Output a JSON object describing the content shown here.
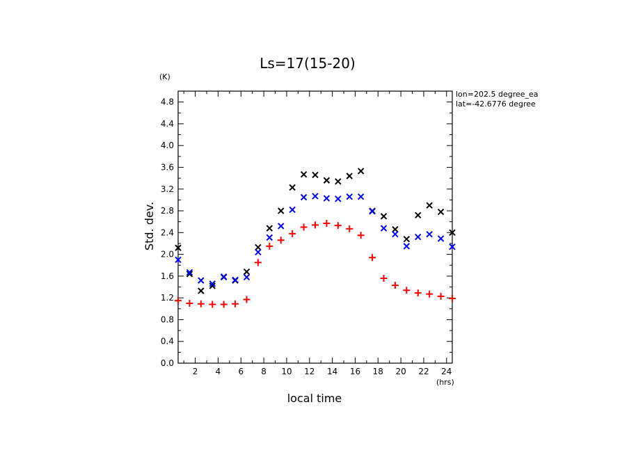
{
  "chart_data": {
    "type": "scatter",
    "title": "Ls=17(15-20)",
    "xlabel": "local time",
    "ylabel": "Std. dev.",
    "x_unit": "(hrs)",
    "y_unit": "(K)",
    "xlim": [
      0.5,
      24.5
    ],
    "ylim": [
      0.0,
      5.0
    ],
    "xticks": [
      2,
      4,
      6,
      8,
      10,
      12,
      14,
      16,
      18,
      20,
      22,
      24
    ],
    "yticks": [
      0.0,
      0.4,
      0.8,
      1.2,
      1.6,
      2.0,
      2.4,
      2.8,
      3.2,
      3.6,
      4.0,
      4.4,
      4.8
    ],
    "annotations": [
      "lon=202.5 degree_ea",
      "lat=-42.6776 degree"
    ],
    "x": [
      0.5,
      1.5,
      2.5,
      3.5,
      4.5,
      5.5,
      6.5,
      7.5,
      8.5,
      9.5,
      10.5,
      11.5,
      12.5,
      13.5,
      14.5,
      15.5,
      16.5,
      17.5,
      18.5,
      19.5,
      20.5,
      21.5,
      22.5,
      23.5,
      24.5
    ],
    "series": [
      {
        "marker": "x",
        "color": "#000000",
        "values": [
          2.12,
          1.64,
          1.33,
          1.42,
          1.58,
          1.52,
          1.68,
          2.13,
          2.48,
          2.8,
          3.23,
          3.47,
          3.46,
          3.36,
          3.34,
          3.44,
          3.53,
          2.8,
          2.7,
          2.46,
          2.28,
          2.72,
          2.9,
          2.78,
          2.4
        ]
      },
      {
        "marker": "x",
        "color": "#0000ff",
        "values": [
          1.9,
          1.67,
          1.52,
          1.46,
          1.59,
          1.53,
          1.58,
          2.04,
          2.31,
          2.52,
          2.82,
          3.05,
          3.07,
          3.03,
          3.02,
          3.06,
          3.06,
          2.79,
          2.48,
          2.37,
          2.15,
          2.32,
          2.37,
          2.29,
          2.14
        ]
      },
      {
        "marker": "+",
        "color": "#ff0000",
        "values": [
          1.15,
          1.1,
          1.09,
          1.08,
          1.08,
          1.09,
          1.17,
          1.85,
          2.15,
          2.26,
          2.38,
          2.5,
          2.54,
          2.57,
          2.53,
          2.47,
          2.35,
          1.94,
          1.56,
          1.43,
          1.34,
          1.29,
          1.27,
          1.23,
          1.19
        ]
      }
    ]
  }
}
